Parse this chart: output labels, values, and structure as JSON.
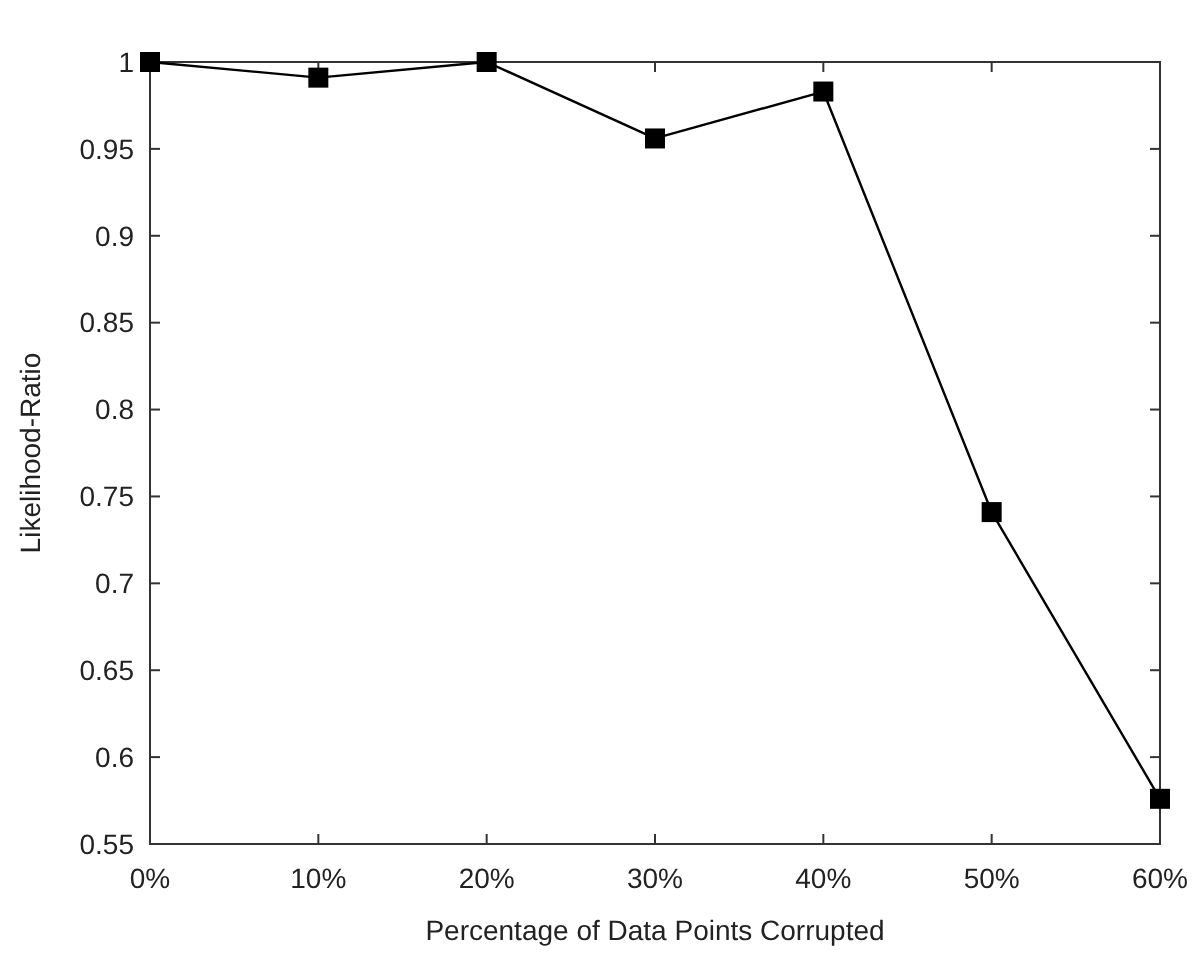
{
  "chart_data": {
    "type": "line",
    "xlabel": "Percentage of Data Points Corrupted",
    "ylabel": "Likelihood-Ratio",
    "categories": [
      "0%",
      "10%",
      "20%",
      "30%",
      "40%",
      "50%",
      "60%"
    ],
    "series": [
      {
        "color": "#000000",
        "values": [
          1.0,
          0.991,
          1.0,
          0.956,
          0.983,
          0.741,
          0.576
        ]
      }
    ],
    "ylim": [
      0.55,
      1
    ],
    "yticks": [
      0.55,
      0.6,
      0.65,
      0.7,
      0.75,
      0.8,
      0.85,
      0.9,
      0.95,
      1
    ],
    "marker": "square",
    "line_style": "solid",
    "grid": false
  }
}
